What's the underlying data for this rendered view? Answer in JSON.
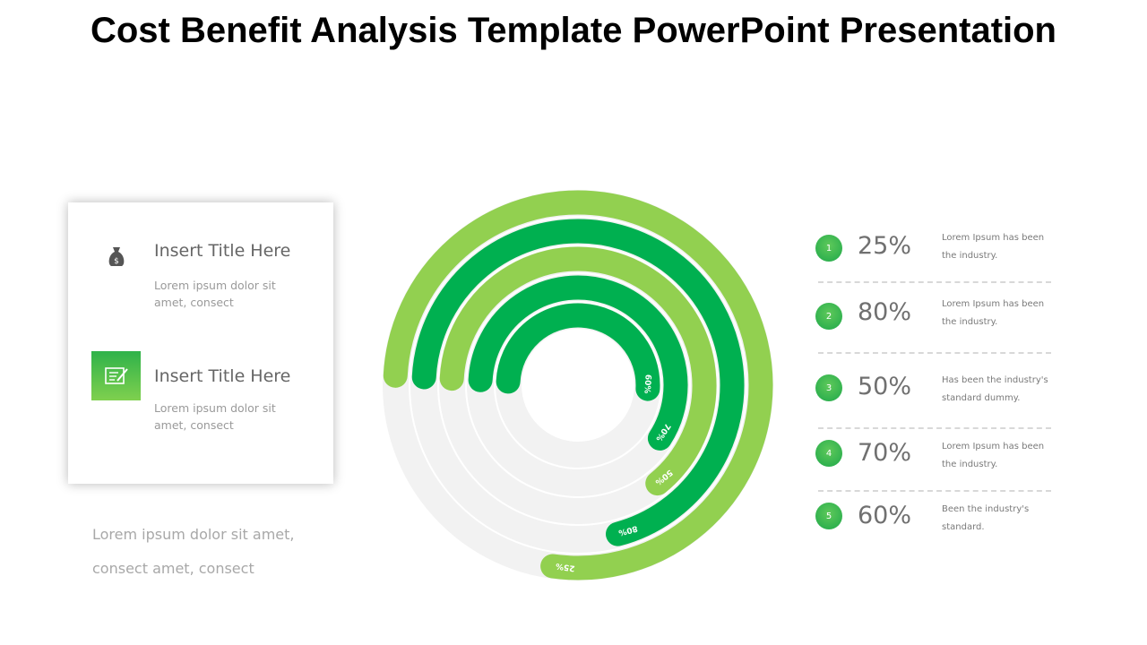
{
  "title": "Cost Benefit Analysis Template PowerPoint Presentation",
  "card": {
    "items": [
      {
        "icon": "money-bag-icon",
        "title": "Insert Title Here",
        "text": "Lorem ipsum dolor sit amet, consect"
      },
      {
        "icon": "edit-document-icon",
        "title": "Insert Title Here",
        "text": "Lorem ipsum dolor sit amet, consect"
      }
    ]
  },
  "bottom_text": {
    "line1": "Lorem ipsum dolor sit amet,",
    "line2": "consect amet, consect"
  },
  "colors": {
    "light_green": "#92d050",
    "dark_green": "#00b050",
    "track": "#f2f2f2"
  },
  "legend": [
    {
      "num": "1",
      "value": "25%",
      "line1": "Lorem Ipsum has been",
      "line2": "the industry."
    },
    {
      "num": "2",
      "value": "80%",
      "line1": "Lorem Ipsum has been",
      "line2": "the industry."
    },
    {
      "num": "3",
      "value": "50%",
      "line1": "Has been the industry's",
      "line2": "standard dummy."
    },
    {
      "num": "4",
      "value": "70%",
      "line1": "Lorem Ipsum has been",
      "line2": "the industry."
    },
    {
      "num": "5",
      "value": "60%",
      "line1": "Been the industry's",
      "line2": "standard."
    }
  ],
  "chart_data": {
    "type": "radial-bar",
    "rings": [
      {
        "label": "25%",
        "value": 25,
        "color": "#92d050"
      },
      {
        "label": "80%",
        "value": 80,
        "color": "#00b050"
      },
      {
        "label": "50%",
        "value": 50,
        "color": "#92d050"
      },
      {
        "label": "70%",
        "value": 70,
        "color": "#00b050"
      },
      {
        "label": "60%",
        "value": 60,
        "color": "#00b050"
      }
    ]
  }
}
